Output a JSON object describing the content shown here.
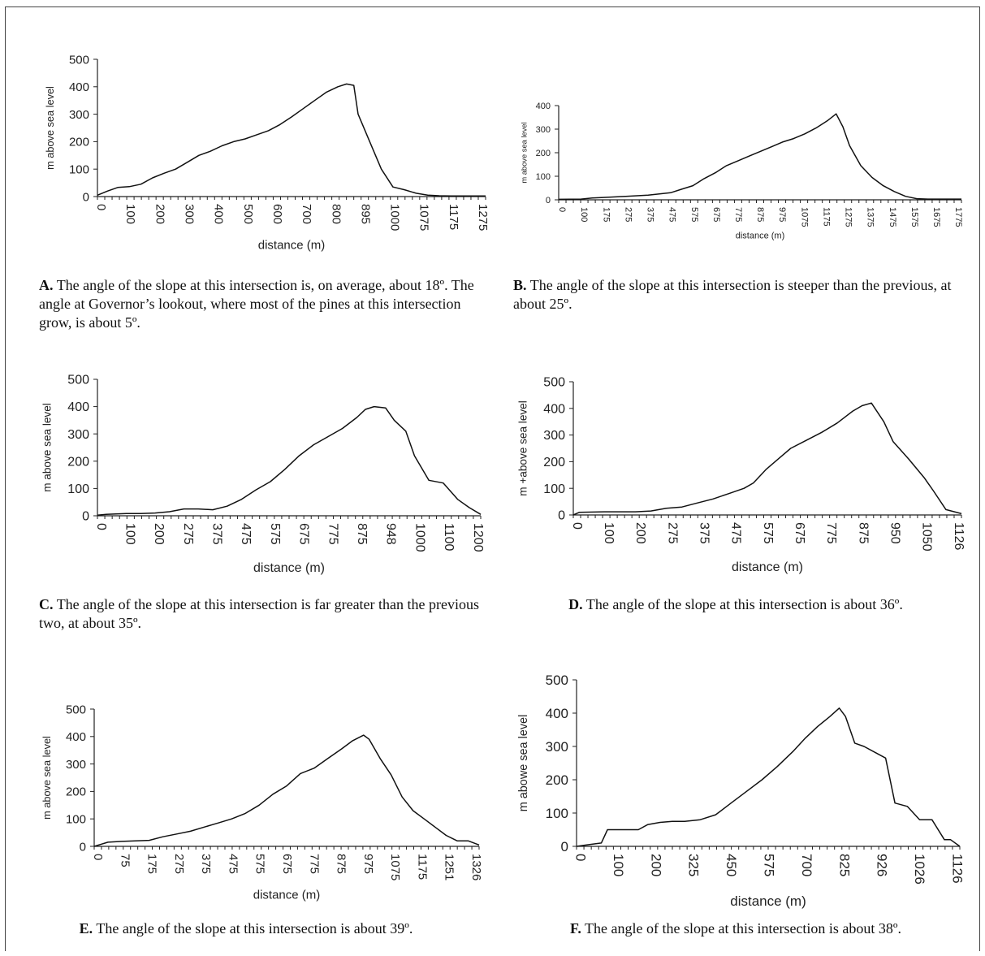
{
  "figures": [
    {
      "id": "A",
      "caption_letter": "A.",
      "caption_text": "The angle of the slope at this intersection is, on average, about 18º. The angle at Governor’s lookout, where most of the pines at this intersection grow, is about 5º.",
      "caption_align": "left"
    },
    {
      "id": "B",
      "caption_letter": "B.",
      "caption_text": "The angle of the slope at this intersection is steeper than the previous, at about 25º.",
      "caption_align": "left"
    },
    {
      "id": "C",
      "caption_letter": "C.",
      "caption_text": "The angle of the slope at this intersection is far greater than the previous two, at about 35º.",
      "caption_align": "left"
    },
    {
      "id": "D",
      "caption_letter": "D.",
      "caption_text": "The angle of the slope at this intersection is about 36º.",
      "caption_align": "center"
    },
    {
      "id": "E",
      "caption_letter": "E.",
      "caption_text": "The angle of the slope at this intersection is about 39º.",
      "caption_align": "center"
    },
    {
      "id": "F",
      "caption_letter": "F.",
      "caption_text": "The angle of the slope at this intersection is about 38º.",
      "caption_align": "center"
    }
  ],
  "chart_data": [
    {
      "type": "line",
      "xlabel": "distance (m)",
      "ylabel": "m above sea level",
      "ylim": [
        0,
        500
      ],
      "yticks": [
        "0",
        "100",
        "200",
        "300",
        "400",
        "500"
      ],
      "categories": [
        "0",
        "100",
        "200",
        "300",
        "400",
        "500",
        "600",
        "700",
        "800",
        "895",
        "1000",
        "1075",
        "1175",
        "1275"
      ],
      "x": [
        0,
        0.35,
        0.7,
        1.1,
        1.5,
        1.9,
        2.3,
        2.7,
        3.1,
        3.5,
        3.9,
        4.3,
        4.7,
        5.1,
        5.5,
        5.9,
        6.3,
        6.7,
        7.1,
        7.5,
        7.9,
        8.3,
        8.6,
        8.85,
        9.0,
        9.4,
        9.8,
        10.2,
        10.6,
        11.0,
        11.4,
        11.8,
        12.2,
        12.6,
        13.0,
        13.4
      ],
      "values": [
        5,
        20,
        33,
        36,
        45,
        68,
        85,
        100,
        125,
        150,
        165,
        185,
        200,
        210,
        225,
        240,
        262,
        290,
        320,
        350,
        380,
        400,
        410,
        405,
        300,
        200,
        100,
        35,
        25,
        12,
        5,
        3,
        2,
        2,
        2,
        2
      ],
      "xlim": [
        0,
        13.4
      ],
      "grid": false,
      "legend": "none"
    },
    {
      "type": "line",
      "xlabel": "distance (m)",
      "ylabel": "m above sea level",
      "ylim": [
        0,
        400
      ],
      "yticks": [
        "0",
        "100",
        "200",
        "300",
        "400"
      ],
      "categories": [
        "0",
        "100",
        "175",
        "275",
        "375",
        "475",
        "575",
        "675",
        "775",
        "875",
        "975",
        "1075",
        "1175",
        "1275",
        "1375",
        "1475",
        "1575",
        "1675",
        "1775"
      ],
      "x": [
        0,
        1,
        1.5,
        2,
        3,
        4,
        5,
        5.5,
        6,
        6.5,
        7,
        7.5,
        8,
        8.5,
        9,
        9.5,
        10,
        10.5,
        11,
        11.5,
        12,
        12.4,
        12.7,
        13,
        13.5,
        14,
        14.5,
        15,
        15.5,
        16,
        16.5,
        17,
        17.5,
        18
      ],
      "values": [
        2,
        3,
        8,
        10,
        15,
        20,
        30,
        45,
        60,
        90,
        115,
        145,
        165,
        185,
        205,
        225,
        245,
        260,
        280,
        305,
        335,
        365,
        310,
        230,
        145,
        95,
        60,
        35,
        15,
        5,
        3,
        3,
        3,
        3
      ],
      "xlim": [
        0,
        18
      ],
      "grid": false,
      "legend": "none"
    },
    {
      "type": "line",
      "xlabel": "distance (m)",
      "ylabel": "m above sea level",
      "ylim": [
        0,
        500
      ],
      "yticks": [
        "0",
        "100",
        "200",
        "300",
        "400",
        "500"
      ],
      "categories": [
        "0",
        "100",
        "200",
        "275",
        "375",
        "475",
        "575",
        "675",
        "775",
        "875",
        "948",
        "1000",
        "1100",
        "1200"
      ],
      "x": [
        0,
        0.3,
        1,
        1.5,
        2,
        2.5,
        3,
        3.5,
        4,
        4.5,
        5,
        5.5,
        6,
        6.5,
        7,
        7.5,
        8,
        8.5,
        9,
        9.3,
        9.6,
        10,
        10.3,
        10.7,
        11,
        11.5,
        12,
        12.5,
        12.9,
        13.3
      ],
      "values": [
        2,
        5,
        8,
        8,
        10,
        15,
        25,
        25,
        22,
        35,
        60,
        95,
        125,
        170,
        220,
        260,
        290,
        320,
        360,
        390,
        400,
        395,
        350,
        310,
        220,
        130,
        120,
        60,
        30,
        5
      ],
      "xlim": [
        0,
        13.3
      ],
      "grid": false,
      "legend": "none"
    },
    {
      "type": "line",
      "xlabel": "distance (m)",
      "ylabel": "m +above sea level",
      "ylim": [
        0,
        500
      ],
      "yticks": [
        "0",
        "100",
        "200",
        "300",
        "400",
        "500"
      ],
      "categories": [
        "0",
        "100",
        "200",
        "275",
        "375",
        "475",
        "575",
        "675",
        "775",
        "875",
        "950",
        "1050",
        "1126"
      ],
      "x": [
        0,
        0.2,
        1,
        2,
        2.5,
        3,
        3.5,
        4,
        4.5,
        5,
        5.5,
        5.8,
        6.2,
        6.6,
        7,
        7.5,
        8,
        8.5,
        9,
        9.3,
        9.6,
        10,
        10.3,
        10.8,
        11.3,
        11.6,
        12,
        12.5
      ],
      "values": [
        0,
        10,
        12,
        12,
        15,
        25,
        30,
        45,
        60,
        80,
        100,
        120,
        170,
        210,
        250,
        280,
        310,
        345,
        390,
        410,
        420,
        350,
        275,
        210,
        140,
        90,
        20,
        5
      ],
      "xlim": [
        0,
        12.5
      ],
      "grid": false,
      "legend": "none"
    },
    {
      "type": "line",
      "xlabel": "distance (m)",
      "ylabel": "m above sea level",
      "ylim": [
        0,
        500
      ],
      "yticks": [
        "0",
        "100",
        "200",
        "300",
        "400",
        "500"
      ],
      "categories": [
        "0",
        "75",
        "175",
        "275",
        "375",
        "475",
        "575",
        "675",
        "775",
        "875",
        "975",
        "1075",
        "1175",
        "1251",
        "1326"
      ],
      "x": [
        0,
        0.5,
        1,
        2,
        2.5,
        3,
        3.5,
        4,
        4.5,
        5,
        5.5,
        6,
        6.5,
        7,
        7.5,
        8,
        8.5,
        9,
        9.4,
        9.8,
        10,
        10.4,
        10.8,
        11.2,
        11.6,
        12,
        12.4,
        12.8,
        13.2,
        13.6,
        14
      ],
      "values": [
        0,
        15,
        18,
        22,
        35,
        45,
        55,
        70,
        85,
        100,
        120,
        150,
        190,
        220,
        265,
        285,
        320,
        355,
        385,
        405,
        390,
        320,
        260,
        180,
        130,
        100,
        70,
        40,
        20,
        20,
        5
      ],
      "xlim": [
        0,
        14
      ],
      "grid": false,
      "legend": "none"
    },
    {
      "type": "line",
      "xlabel": "distance (m)",
      "ylabel": "m abowe sea level",
      "ylim": [
        0,
        500
      ],
      "yticks": [
        "0",
        "100",
        "200",
        "300",
        "400",
        "500"
      ],
      "categories": [
        "0",
        "100",
        "200",
        "325",
        "450",
        "575",
        "700",
        "825",
        "926",
        "1026",
        "1126"
      ],
      "x": [
        0,
        0.4,
        0.8,
        1,
        1.5,
        2,
        2.3,
        2.7,
        3.1,
        3.5,
        4,
        4.5,
        5,
        5.5,
        6,
        6.5,
        7,
        7.4,
        7.8,
        8.2,
        8.5,
        8.7,
        9,
        9.3,
        9.7,
        10,
        10.3,
        10.7,
        11.1,
        11.5,
        11.9,
        12.1,
        12.4
      ],
      "values": [
        0,
        5,
        10,
        50,
        50,
        50,
        65,
        72,
        75,
        75,
        80,
        95,
        130,
        165,
        200,
        240,
        285,
        325,
        360,
        390,
        415,
        390,
        310,
        300,
        280,
        265,
        130,
        120,
        80,
        80,
        20,
        20,
        0
      ],
      "xlim": [
        0,
        12.4
      ],
      "grid": false,
      "legend": "none"
    }
  ]
}
